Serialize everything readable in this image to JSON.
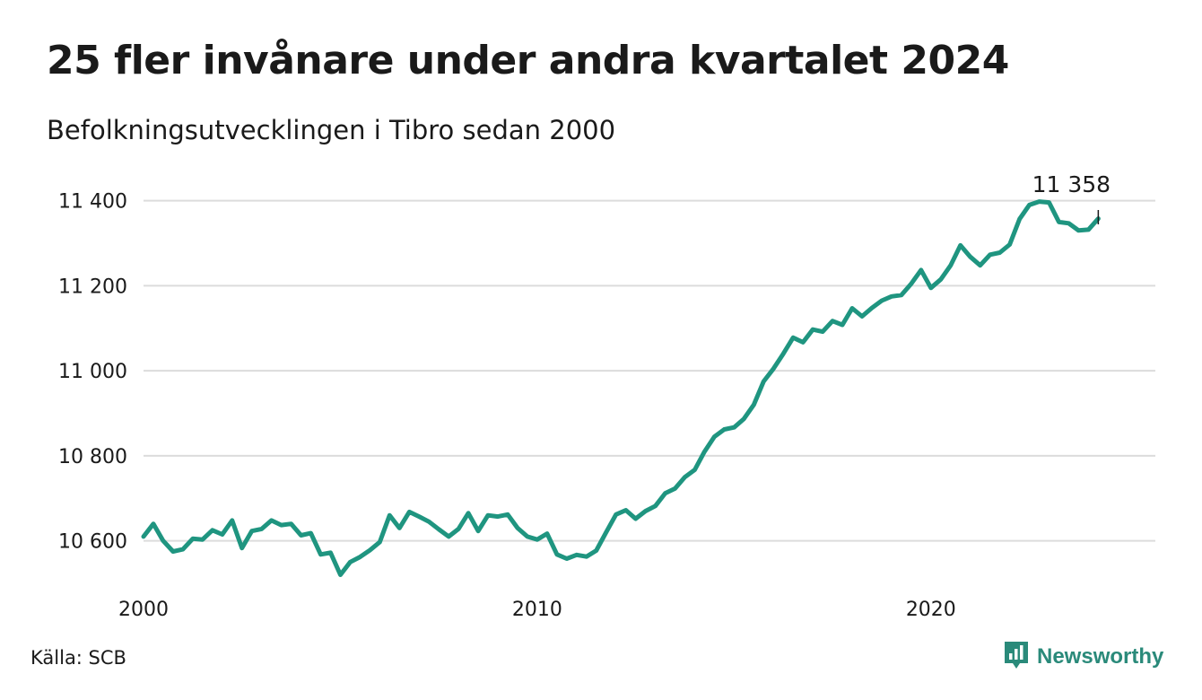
{
  "title": "25 fler invånare under andra kvartalet 2024",
  "subtitle": "Befolkningsutvecklingen i Tibro sedan 2000",
  "source": "Källa: SCB",
  "brand": "Newsworthy",
  "colors": {
    "line": "#1f9580",
    "grid": "#dcdcdc",
    "brand": "#2a8a7a"
  },
  "chart_data": {
    "type": "line",
    "title": "25 fler invånare under andra kvartalet 2024",
    "subtitle": "Befolkningsutvecklingen i Tibro sedan 2000",
    "xlabel": "",
    "ylabel": "",
    "x_start": 2000.0,
    "x_step": 0.25,
    "xlim": [
      2000,
      2025.7
    ],
    "ylim": [
      10500,
      11450
    ],
    "x_ticks": [
      2000,
      2010,
      2020
    ],
    "x_tick_labels": [
      "2000",
      "2010",
      "2020"
    ],
    "y_ticks": [
      10600,
      10800,
      11000,
      11200,
      11400
    ],
    "y_tick_labels": [
      "10 600",
      "10 800",
      "11 000",
      "11 200",
      "11 400"
    ],
    "grid": true,
    "end_label": "11 358",
    "values": [
      10610,
      10640,
      10600,
      10575,
      10580,
      10605,
      10603,
      10625,
      10615,
      10648,
      10583,
      10623,
      10628,
      10648,
      10637,
      10640,
      10613,
      10618,
      10568,
      10572,
      10520,
      10550,
      10562,
      10578,
      10597,
      10660,
      10630,
      10668,
      10657,
      10645,
      10627,
      10610,
      10628,
      10665,
      10623,
      10660,
      10657,
      10662,
      10630,
      10610,
      10603,
      10617,
      10568,
      10558,
      10567,
      10563,
      10577,
      10620,
      10662,
      10672,
      10652,
      10670,
      10682,
      10712,
      10723,
      10750,
      10767,
      10810,
      10845,
      10862,
      10867,
      10887,
      10920,
      10975,
      11005,
      11040,
      11078,
      11067,
      11097,
      11092,
      11117,
      11108,
      11147,
      11128,
      11148,
      11165,
      11175,
      11178,
      11205,
      11237,
      11195,
      11215,
      11248,
      11295,
      11268,
      11248,
      11273,
      11278,
      11297,
      11357,
      11390,
      11398,
      11396,
      11350,
      11347,
      11330,
      11332,
      11358
    ]
  }
}
